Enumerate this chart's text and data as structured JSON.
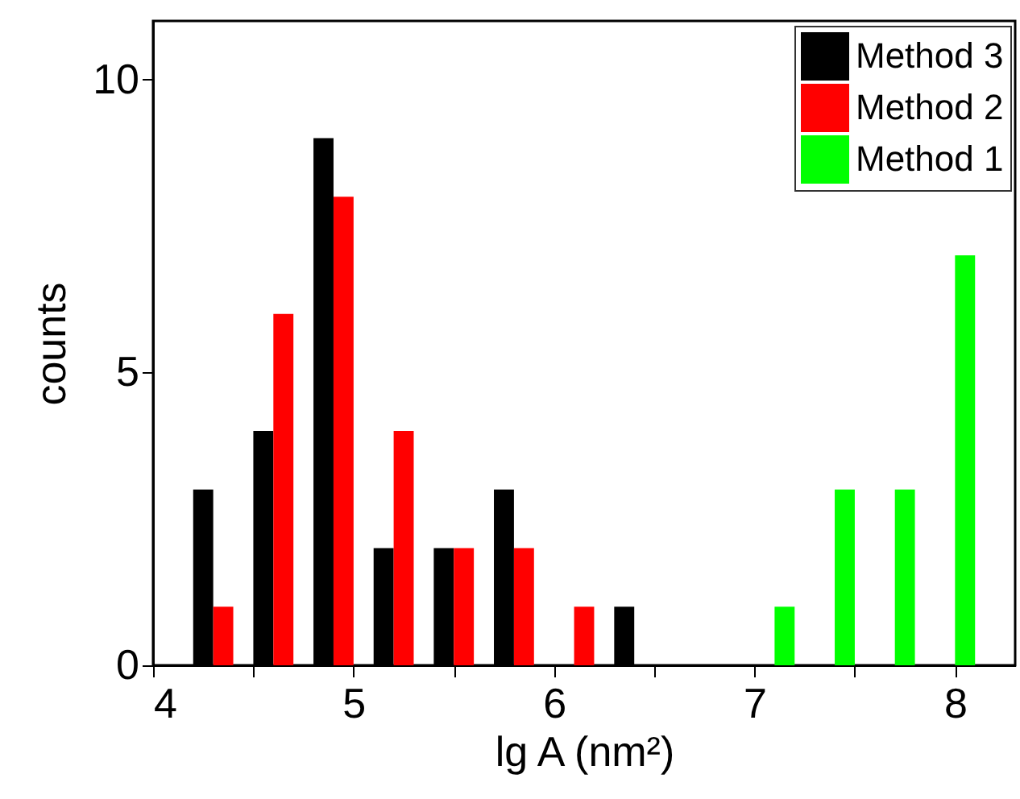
{
  "chart_data": {
    "type": "bar",
    "xlabel": "lg A (nm²)",
    "ylabel": "counts",
    "xlim": [
      4,
      8.3
    ],
    "xticks": [
      4,
      {
        "value": 4.5,
        "label": null
      },
      5,
      {
        "value": 5.5,
        "label": null
      },
      6,
      {
        "value": 6.5,
        "label": null
      },
      7,
      {
        "value": 7.5,
        "label": null
      },
      8
    ],
    "ylim": [
      0,
      11
    ],
    "yticks": [
      0,
      5,
      10
    ],
    "legend": "top right",
    "grid": false,
    "series": [
      {
        "name": "Method 3",
        "color": "#000000",
        "x": [
          4.25,
          4.55,
          4.85,
          5.15,
          5.45,
          5.75,
          6.35
        ],
        "values": [
          3,
          4,
          9,
          2,
          2,
          3,
          1
        ]
      },
      {
        "name": "Method 2",
        "color": "#ff0000",
        "x": [
          4.35,
          4.65,
          4.95,
          5.25,
          5.55,
          5.85,
          6.15
        ],
        "values": [
          1,
          6,
          8,
          4,
          2,
          2,
          1
        ]
      },
      {
        "name": "Method 1",
        "color": "#00ff00",
        "x": [
          7.15,
          7.45,
          7.75,
          8.05
        ],
        "values": [
          1,
          3,
          3,
          7
        ]
      }
    ]
  }
}
